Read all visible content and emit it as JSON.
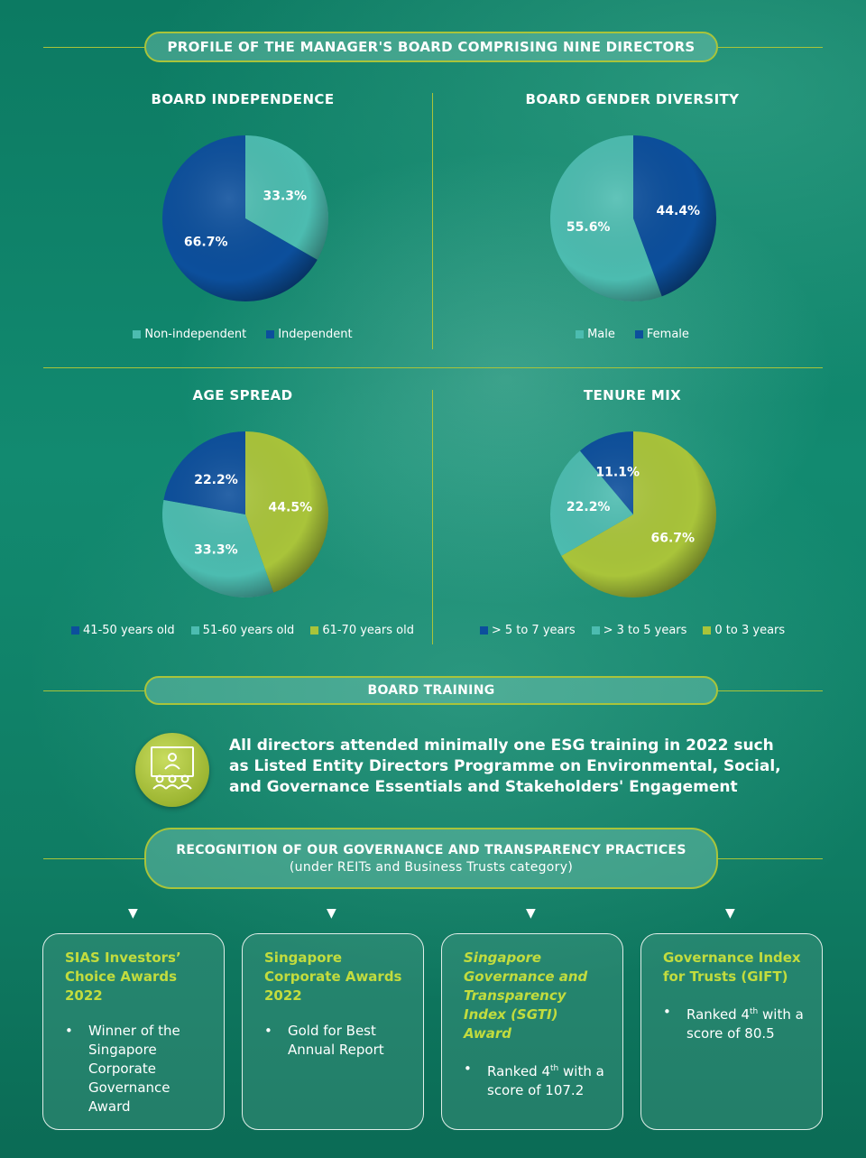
{
  "header": {
    "title": "PROFILE OF THE MANAGER'S BOARD COMPRISING NINE DIRECTORS"
  },
  "colors": {
    "dark_blue": "#0c4f9c",
    "teal": "#4cbcb0",
    "lime": "#a9c43a",
    "accent_line": "#a9c43a",
    "card_title": "#c2dc3e"
  },
  "chart_data": [
    {
      "type": "pie",
      "title": "BOARD INDEPENDENCE",
      "slices": [
        {
          "label": "Non-independent",
          "value": 33.3,
          "display": "33.3%",
          "color": "#4cbcb0"
        },
        {
          "label": "Independent",
          "value": 66.7,
          "display": "66.7%",
          "color": "#0c4f9c"
        }
      ],
      "legend": [
        "Non-independent",
        "Independent"
      ],
      "legend_placement": "bottom"
    },
    {
      "type": "pie",
      "title": "BOARD GENDER DIVERSITY",
      "slices": [
        {
          "label": "Male",
          "value": 55.6,
          "display": "55.6%",
          "color": "#4cbcb0"
        },
        {
          "label": "Female",
          "value": 44.4,
          "display": "44.4%",
          "color": "#0c4f9c"
        }
      ],
      "legend": [
        "Male",
        "Female"
      ],
      "legend_placement": "bottom"
    },
    {
      "type": "pie",
      "title": "AGE SPREAD",
      "slices": [
        {
          "label": "41-50 years old",
          "value": 22.2,
          "display": "22.2%",
          "color": "#0c4f9c"
        },
        {
          "label": "51-60 years old",
          "value": 33.3,
          "display": "33.3%",
          "color": "#4cbcb0"
        },
        {
          "label": "61-70 years old",
          "value": 44.5,
          "display": "44.5%",
          "color": "#a9c43a"
        }
      ],
      "legend": [
        "41-50 years old",
        "51-60 years old",
        "61-70 years old"
      ],
      "legend_placement": "bottom"
    },
    {
      "type": "pie",
      "title": "TENURE MIX",
      "slices": [
        {
          "label": "> 5 to 7 years",
          "value": 11.1,
          "display": "11.1%",
          "color": "#0c4f9c"
        },
        {
          "label": "> 3 to 5 years",
          "value": 22.2,
          "display": "22.2%",
          "color": "#4cbcb0"
        },
        {
          "label": "0 to 3 years",
          "value": 66.7,
          "display": "66.7%",
          "color": "#a9c43a"
        }
      ],
      "legend": [
        "> 5 to 7 years",
        "> 3 to 5 years",
        "0 to 3 years"
      ],
      "legend_placement": "bottom"
    }
  ],
  "training": {
    "title": "BOARD TRAINING",
    "text": "All directors attended minimally one ESG training in 2022 such as Listed Entity Directors Programme on Environmental, Social, and Governance Essentials and Stakeholders' Engagement",
    "icon": "presentation-audience-icon"
  },
  "recognition": {
    "title": "RECOGNITION OF OUR GOVERNANCE AND TRANSPARENCY PRACTICES",
    "subtitle": "(under REITs and Business Trusts category)",
    "arrow": "▼",
    "cards": [
      {
        "title": "SIAS Investors’ Choice Awards 2022",
        "bullet": "•",
        "text": "Winner of the Singapore Corporate Governance Award",
        "sup": "",
        "text_after": ""
      },
      {
        "title": "Singapore Corporate Awards 2022",
        "bullet": "•",
        "text": "Gold for Best Annual Report",
        "sup": "",
        "text_after": ""
      },
      {
        "title": "Singapore Governance and Transparency Index (SGTI) Award",
        "bullet": "•",
        "text": "Ranked 4",
        "sup": "th",
        "text_after": " with a score of 107.2"
      },
      {
        "title": "Governance Index for Trusts (GIFT)",
        "bullet": "•",
        "text": "Ranked 4",
        "sup": "th",
        "text_after": " with a score of 80.5"
      }
    ]
  }
}
